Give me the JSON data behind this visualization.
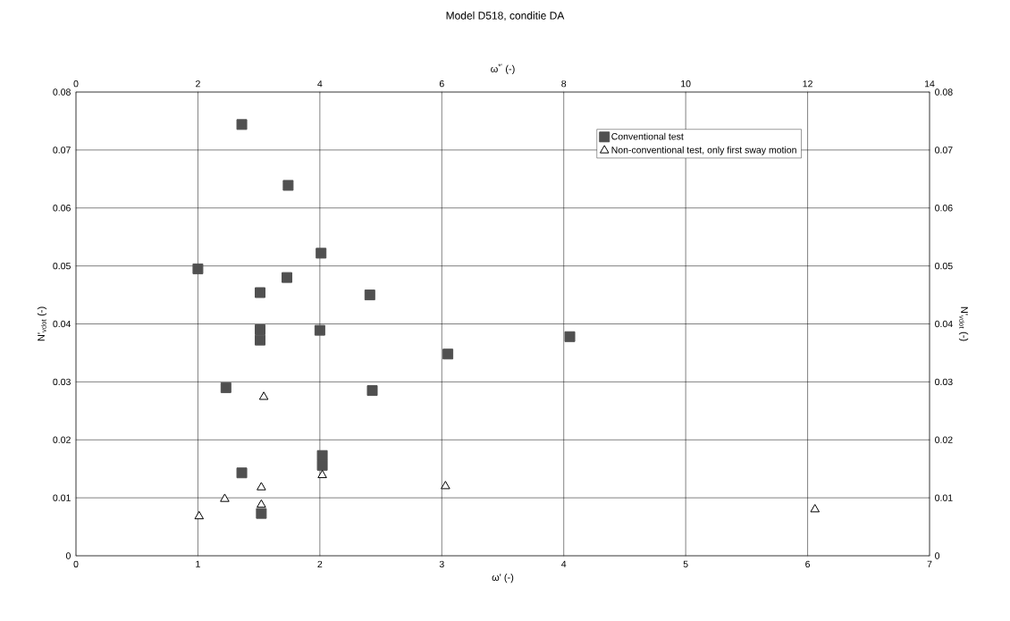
{
  "chart_data": {
    "type": "scatter",
    "title": "Model D518, conditie DA",
    "xlabel": "ω' (-)",
    "ylabel": "N'$_{vdot}$ (-)",
    "x2label": "ω$^{*'}$ (-)",
    "y2label": "N'$_{vdot}$ (-)",
    "xlim": [
      0,
      7
    ],
    "xticks": [
      0,
      1,
      2,
      3,
      4,
      5,
      6,
      7
    ],
    "ylim": [
      0,
      0.08
    ],
    "yticks": [
      0,
      0.01,
      0.02,
      0.03,
      0.04,
      0.05,
      0.06,
      0.07,
      0.08
    ],
    "x2lim": [
      0,
      14
    ],
    "x2ticks": [
      0,
      2,
      4,
      6,
      8,
      10,
      12,
      14
    ],
    "y2lim": [
      0,
      0.08
    ],
    "y2ticks": [
      0,
      0.01,
      0.02,
      0.03,
      0.04,
      0.05,
      0.06,
      0.07,
      0.08
    ],
    "grid": true,
    "legend": "top right",
    "series": [
      {
        "name": "Conventional test",
        "color": "#505050",
        "marker": "square",
        "x": [
          1.36,
          1.74,
          2.01,
          1.0,
          1.73,
          1.51,
          2.41,
          1.51,
          1.51,
          2.0,
          1.23,
          2.43,
          3.05,
          1.36,
          2.02,
          2.02,
          1.52,
          4.05
        ],
        "values": [
          0.0744,
          0.0639,
          0.0522,
          0.0495,
          0.048,
          0.0454,
          0.045,
          0.039,
          0.0372,
          0.0389,
          0.029,
          0.0285,
          0.0348,
          0.0143,
          0.0173,
          0.0156,
          0.0073,
          0.0378
        ]
      },
      {
        "name": "Non-conventional test, only first sway motion",
        "color": "#000000",
        "marker": "triangle",
        "x": [
          1.54,
          1.01,
          1.22,
          1.52,
          1.52,
          2.02,
          3.03,
          6.06
        ],
        "values": [
          0.0274,
          0.0068,
          0.0098,
          0.0118,
          0.0088,
          0.0139,
          0.012,
          0.008
        ]
      }
    ]
  }
}
